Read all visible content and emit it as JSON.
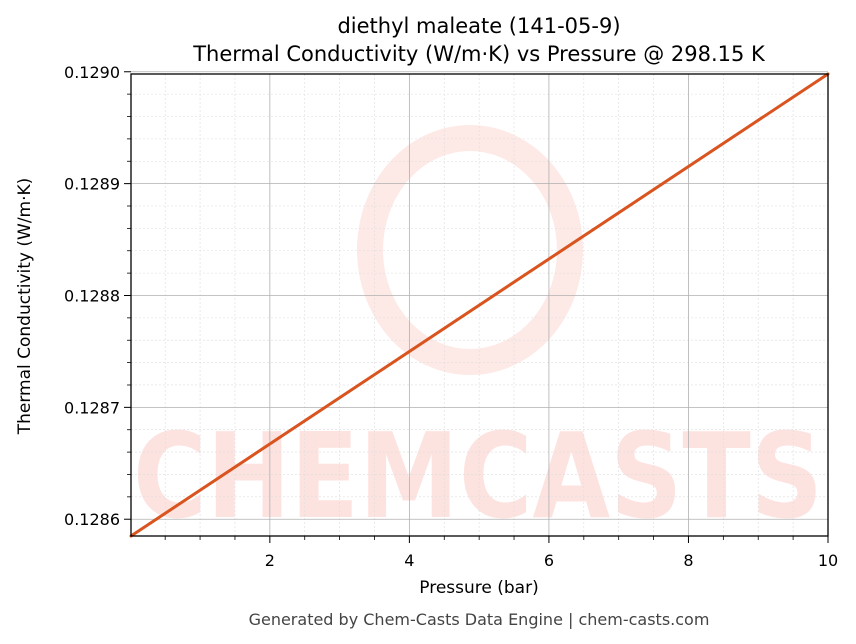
{
  "chart_data": {
    "type": "line",
    "title": "diethyl maleate (141-05-9)",
    "subtitle": "Thermal Conductivity (W/m·K) vs Pressure @ 298.15 K",
    "xlabel": "Pressure (bar)",
    "ylabel": "Thermal Conductivity (W/m·K)",
    "xlim": [
      0.01,
      10
    ],
    "ylim": [
      0.128585,
      0.128998
    ],
    "x_ticks": [
      2,
      4,
      6,
      8,
      10
    ],
    "x_tick_labels": [
      "2",
      "4",
      "6",
      "8",
      "10"
    ],
    "y_ticks": [
      0.1286,
      0.1287,
      0.1288,
      0.1289,
      0.129
    ],
    "y_tick_labels": [
      "0.1286",
      "0.1287",
      "0.1288",
      "0.1289",
      "0.1290"
    ],
    "grid": true,
    "series": [
      {
        "color": "#d9541e",
        "x": [
          0.01,
          10
        ],
        "y": [
          0.128585,
          0.128998
        ]
      }
    ]
  },
  "watermark": {
    "text": "CHEMCASTS",
    "color": "#fde3e0"
  },
  "footer": "Generated by Chem-Casts Data Engine | chem-casts.com"
}
